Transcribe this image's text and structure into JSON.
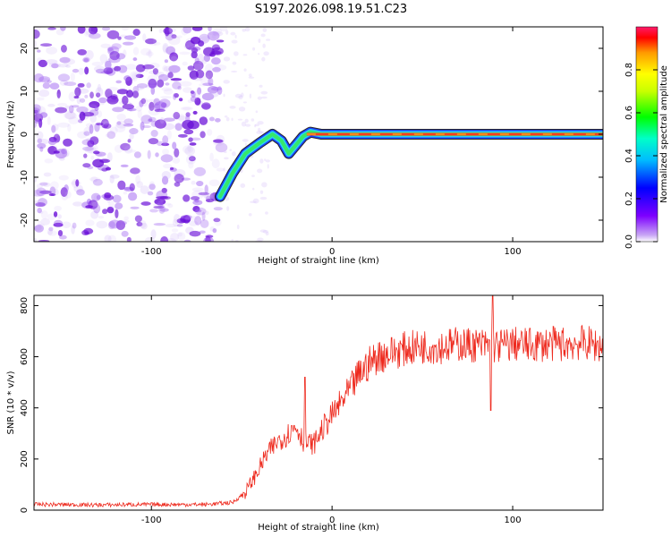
{
  "title": "S197.2026.098.19.51.C23",
  "colors": {
    "snr_line": "#ee2a1e",
    "blob_purple": "#7b2be0",
    "background": "#ffffff"
  },
  "chart_data": [
    {
      "type": "heatmap",
      "title": "S197.2026.098.19.51.C23",
      "xlabel": "Height of straight line (km)",
      "ylabel": "Frequency (Hz)",
      "xlim": [
        -165,
        150
      ],
      "ylim": [
        -25,
        25
      ],
      "xticks": [
        -100,
        0,
        100
      ],
      "yticks": [
        -20,
        -10,
        0,
        10,
        20
      ],
      "grid": false,
      "ridge": {
        "x": [
          -62,
          -55,
          -48,
          -40,
          -33,
          -28,
          -24,
          -20,
          -16,
          -12,
          -6,
          0,
          40,
          80,
          120,
          150
        ],
        "y": [
          -14.5,
          -9,
          -4.5,
          -2,
          0,
          -1.5,
          -4.5,
          -2.5,
          -0.5,
          0.5,
          0,
          0,
          0,
          0,
          0,
          0
        ]
      },
      "colorbar": {
        "label": "Normalized spectral amplitude",
        "ticks": [
          0.0,
          0.2,
          0.4,
          0.6,
          0.8
        ],
        "range": [
          0,
          1
        ]
      }
    },
    {
      "type": "line",
      "xlabel": "Height of straight line (km)",
      "ylabel": "SNR (10 * v/v)",
      "xlim": [
        -165,
        150
      ],
      "ylim": [
        0,
        840
      ],
      "xticks": [
        -100,
        0,
        100
      ],
      "yticks": [
        0,
        200,
        400,
        600,
        800
      ],
      "grid": false,
      "series": [
        {
          "name": "SNR",
          "x": [
            -165,
            -150,
            -130,
            -110,
            -90,
            -70,
            -55,
            -48,
            -42,
            -36,
            -30,
            -24,
            -20,
            -15,
            -10,
            -5,
            0,
            5,
            10,
            15,
            20,
            25,
            30,
            40,
            50,
            60,
            70,
            80,
            90,
            100,
            110,
            120,
            130,
            140,
            150
          ],
          "y": [
            22,
            22,
            20,
            22,
            22,
            22,
            30,
            70,
            140,
            220,
            270,
            300,
            330,
            260,
            260,
            320,
            370,
            420,
            470,
            530,
            570,
            600,
            610,
            630,
            640,
            640,
            650,
            645,
            640,
            650,
            645,
            650,
            650,
            655,
            640
          ],
          "annotations": [
            {
              "x": -15,
              "y": 520,
              "note": "spike"
            },
            {
              "x": 88,
              "y": 390,
              "note": "dip"
            },
            {
              "x": 89,
              "y": 840,
              "note": "spike"
            }
          ]
        }
      ]
    }
  ]
}
